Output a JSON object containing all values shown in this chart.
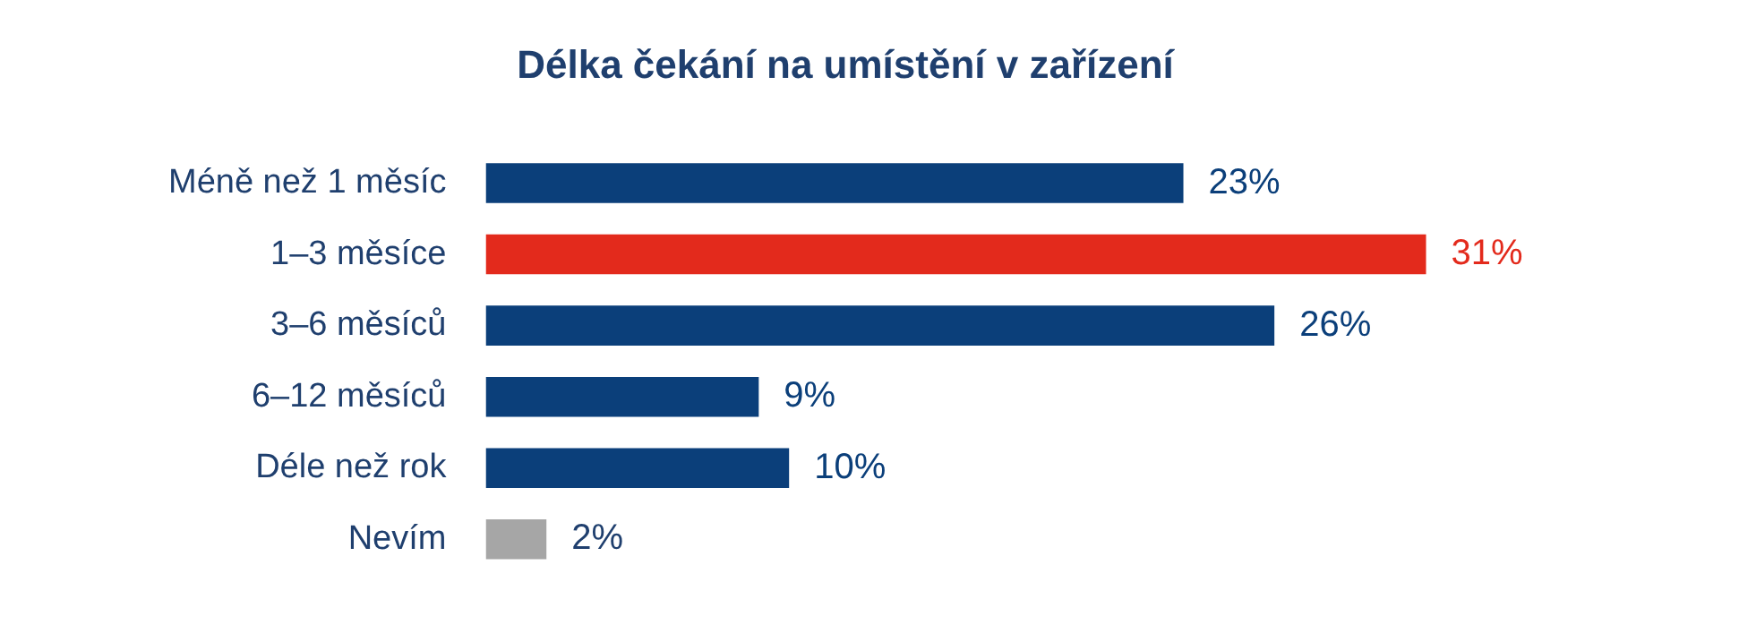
{
  "chart_data": {
    "type": "bar",
    "orientation": "horizontal",
    "title": "Délka čekání na umístění v zařízení",
    "categories": [
      "Méně než 1 měsíc",
      "1–3 měsíce",
      "3–6 měsíců",
      "6–12 měsíců",
      "Déle než rok",
      "Nevím"
    ],
    "values": [
      23,
      31,
      26,
      9,
      10,
      2
    ],
    "value_labels": [
      "23%",
      "31%",
      "26%",
      "9%",
      "10%",
      "2%"
    ],
    "colors": [
      "#0b3f7a",
      "#e32a1c",
      "#0b3f7a",
      "#0b3f7a",
      "#0b3f7a",
      "#a6a6a6"
    ],
    "legend": false
  }
}
